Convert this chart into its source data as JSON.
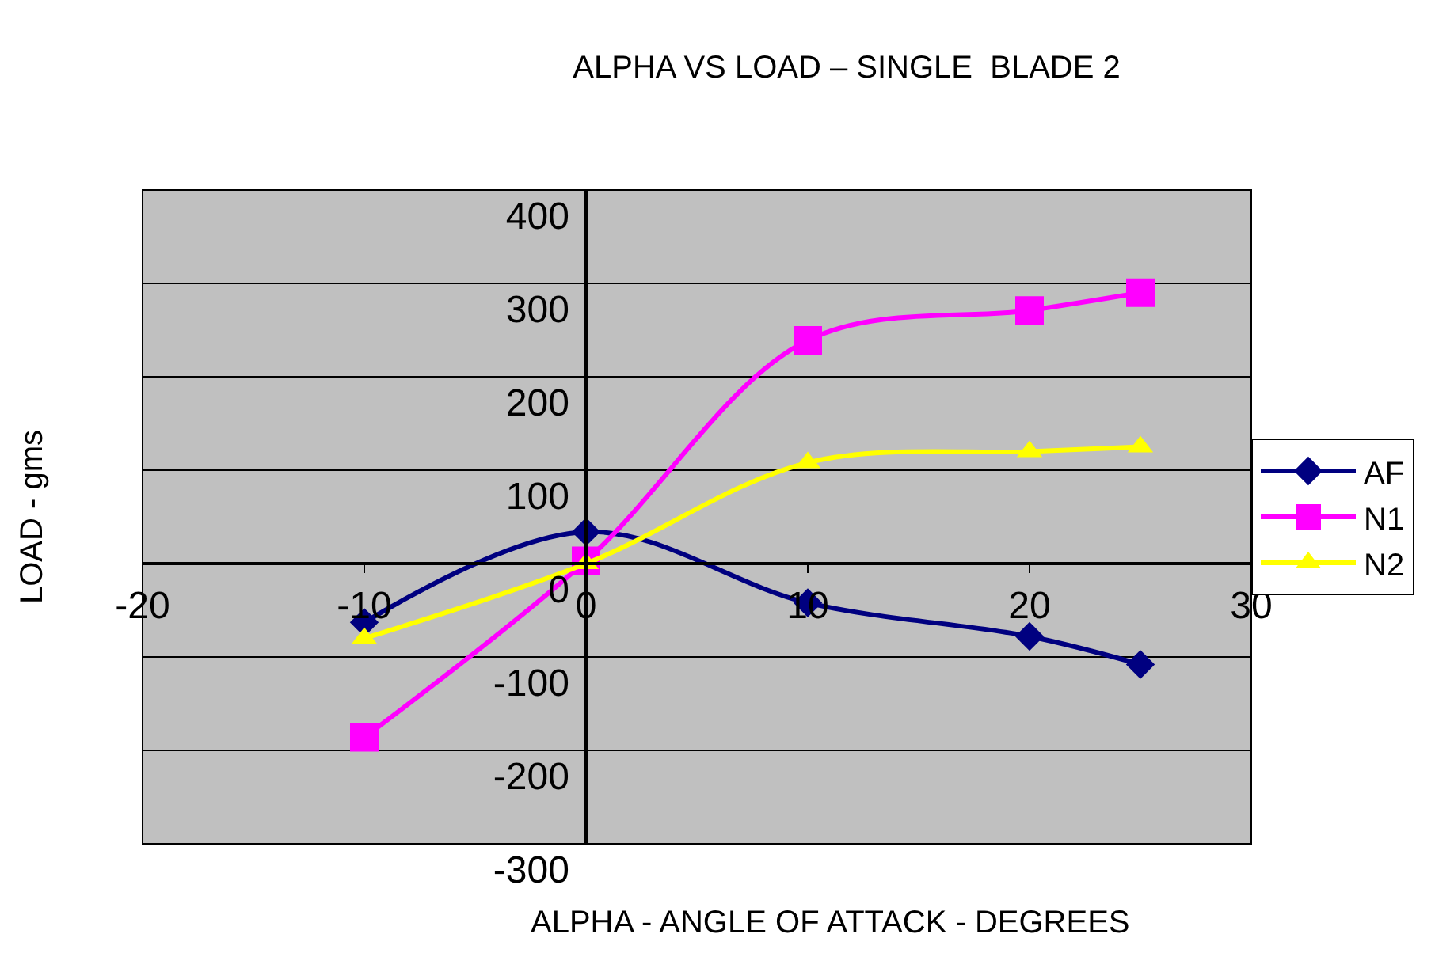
{
  "chart_data": {
    "type": "line",
    "title": "ALPHA VS LOAD – SINGLE  BLADE 2",
    "xlabel": "ALPHA - ANGLE OF ATTACK - DEGREES",
    "ylabel": "LOAD - gms",
    "x": [
      -10,
      0,
      10,
      20,
      25
    ],
    "series": [
      {
        "name": "AF",
        "color": "#000080",
        "marker": "diamond",
        "values": [
          -63,
          34,
          -42,
          -78,
          -108
        ]
      },
      {
        "name": "N1",
        "color": "#ff00ff",
        "marker": "square",
        "values": [
          -186,
          3,
          239,
          271,
          290
        ]
      },
      {
        "name": "N2",
        "color": "#ffff00",
        "marker": "triangle",
        "values": [
          -80,
          0,
          108,
          120,
          125
        ]
      }
    ],
    "xlim": [
      -20,
      30
    ],
    "xticks": [
      -20,
      -10,
      0,
      10,
      20,
      30
    ],
    "ylim": [
      -300,
      400
    ],
    "yticks": [
      -300,
      -200,
      -100,
      0,
      100,
      200,
      300,
      400
    ],
    "grid": "y",
    "legend": "right",
    "line_style": "solid"
  }
}
